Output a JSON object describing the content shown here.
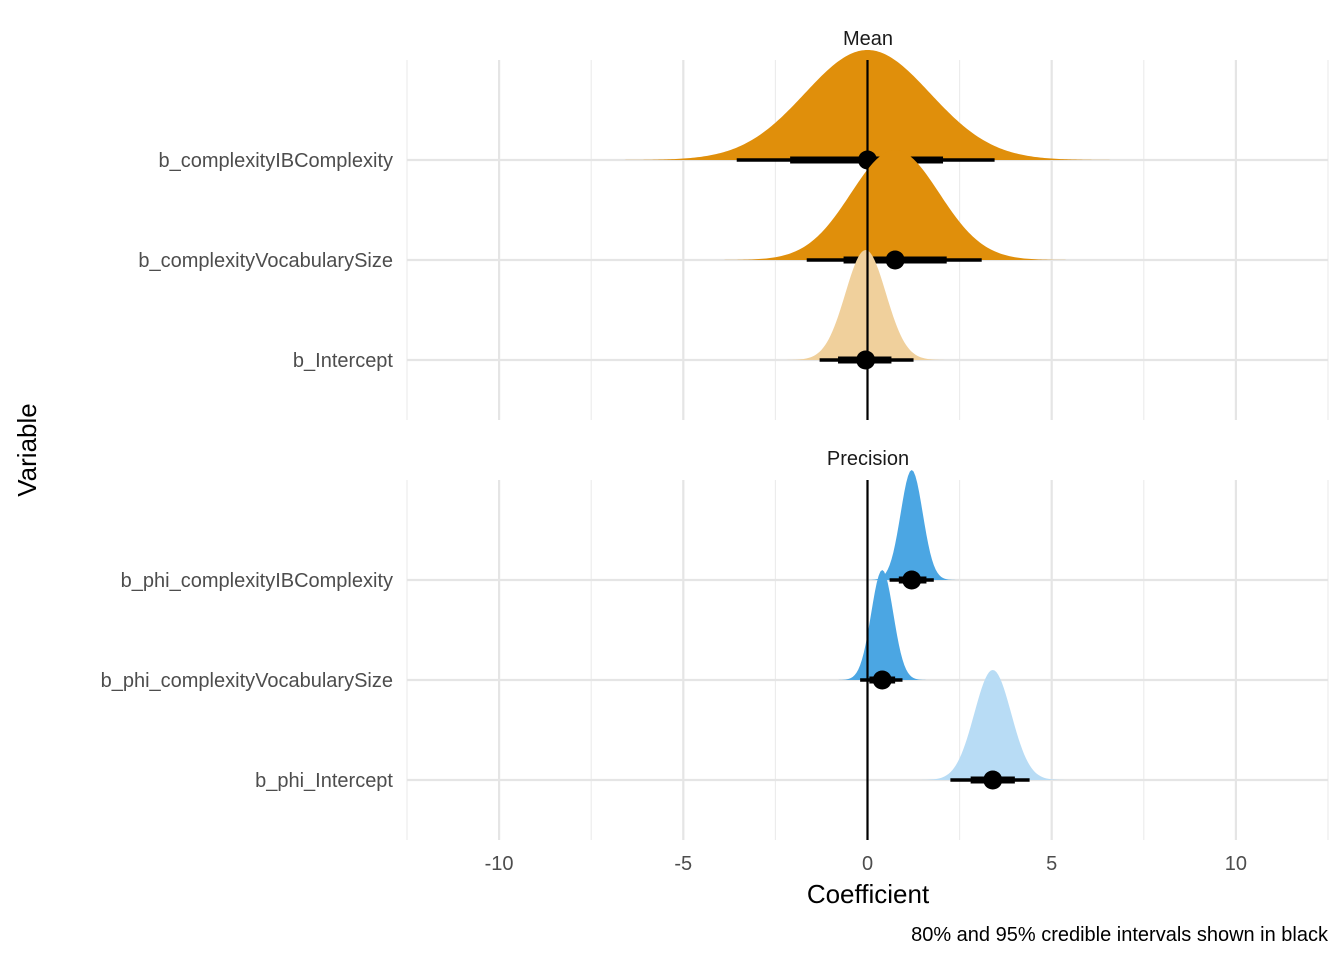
{
  "chart_data": {
    "type": "halfeye",
    "xlabel": "Coefficient",
    "ylabel": "Variable",
    "caption": "80% and 95% credible intervals shown in black",
    "xlim": [
      -12.5,
      12.5
    ],
    "x_ticks": [
      -10,
      -5,
      0,
      5,
      10
    ],
    "x_tick_labels": [
      "-10",
      "-5",
      "0",
      "5",
      "10"
    ],
    "reference_line": 0,
    "grid": true,
    "panels": [
      {
        "title": "Mean",
        "rows": [
          {
            "label": "b_complexityIBComplexity",
            "color": "#e08f0b",
            "median": 0.0,
            "sd": 1.7,
            "int80": [
              -2.1,
              2.05
            ],
            "int95": [
              -3.55,
              3.45
            ]
          },
          {
            "label": "b_complexityVocabularySize",
            "color": "#e08f0b",
            "median": 0.75,
            "sd": 1.2,
            "int80": [
              -0.65,
              2.15
            ],
            "int95": [
              -1.65,
              3.1
            ]
          },
          {
            "label": "b_Intercept",
            "color": "#f0d09c",
            "median": -0.05,
            "sd": 0.55,
            "int80": [
              -0.8,
              0.65
            ],
            "int95": [
              -1.3,
              1.25
            ]
          }
        ]
      },
      {
        "title": "Precision",
        "rows": [
          {
            "label": "b_phi_complexityIBComplexity",
            "color": "#4ba6e3",
            "median": 1.2,
            "sd": 0.3,
            "int80": [
              0.85,
              1.6
            ],
            "int95": [
              0.6,
              1.8
            ]
          },
          {
            "label": "b_phi_complexityVocabularySize",
            "color": "#4ba6e3",
            "median": 0.4,
            "sd": 0.3,
            "int80": [
              0.05,
              0.75
            ],
            "int95": [
              -0.2,
              0.95
            ]
          },
          {
            "label": "b_phi_Intercept",
            "color": "#b8dcf5",
            "median": 3.4,
            "sd": 0.5,
            "int80": [
              2.8,
              4.0
            ],
            "int95": [
              2.25,
              4.4
            ]
          }
        ]
      }
    ]
  }
}
